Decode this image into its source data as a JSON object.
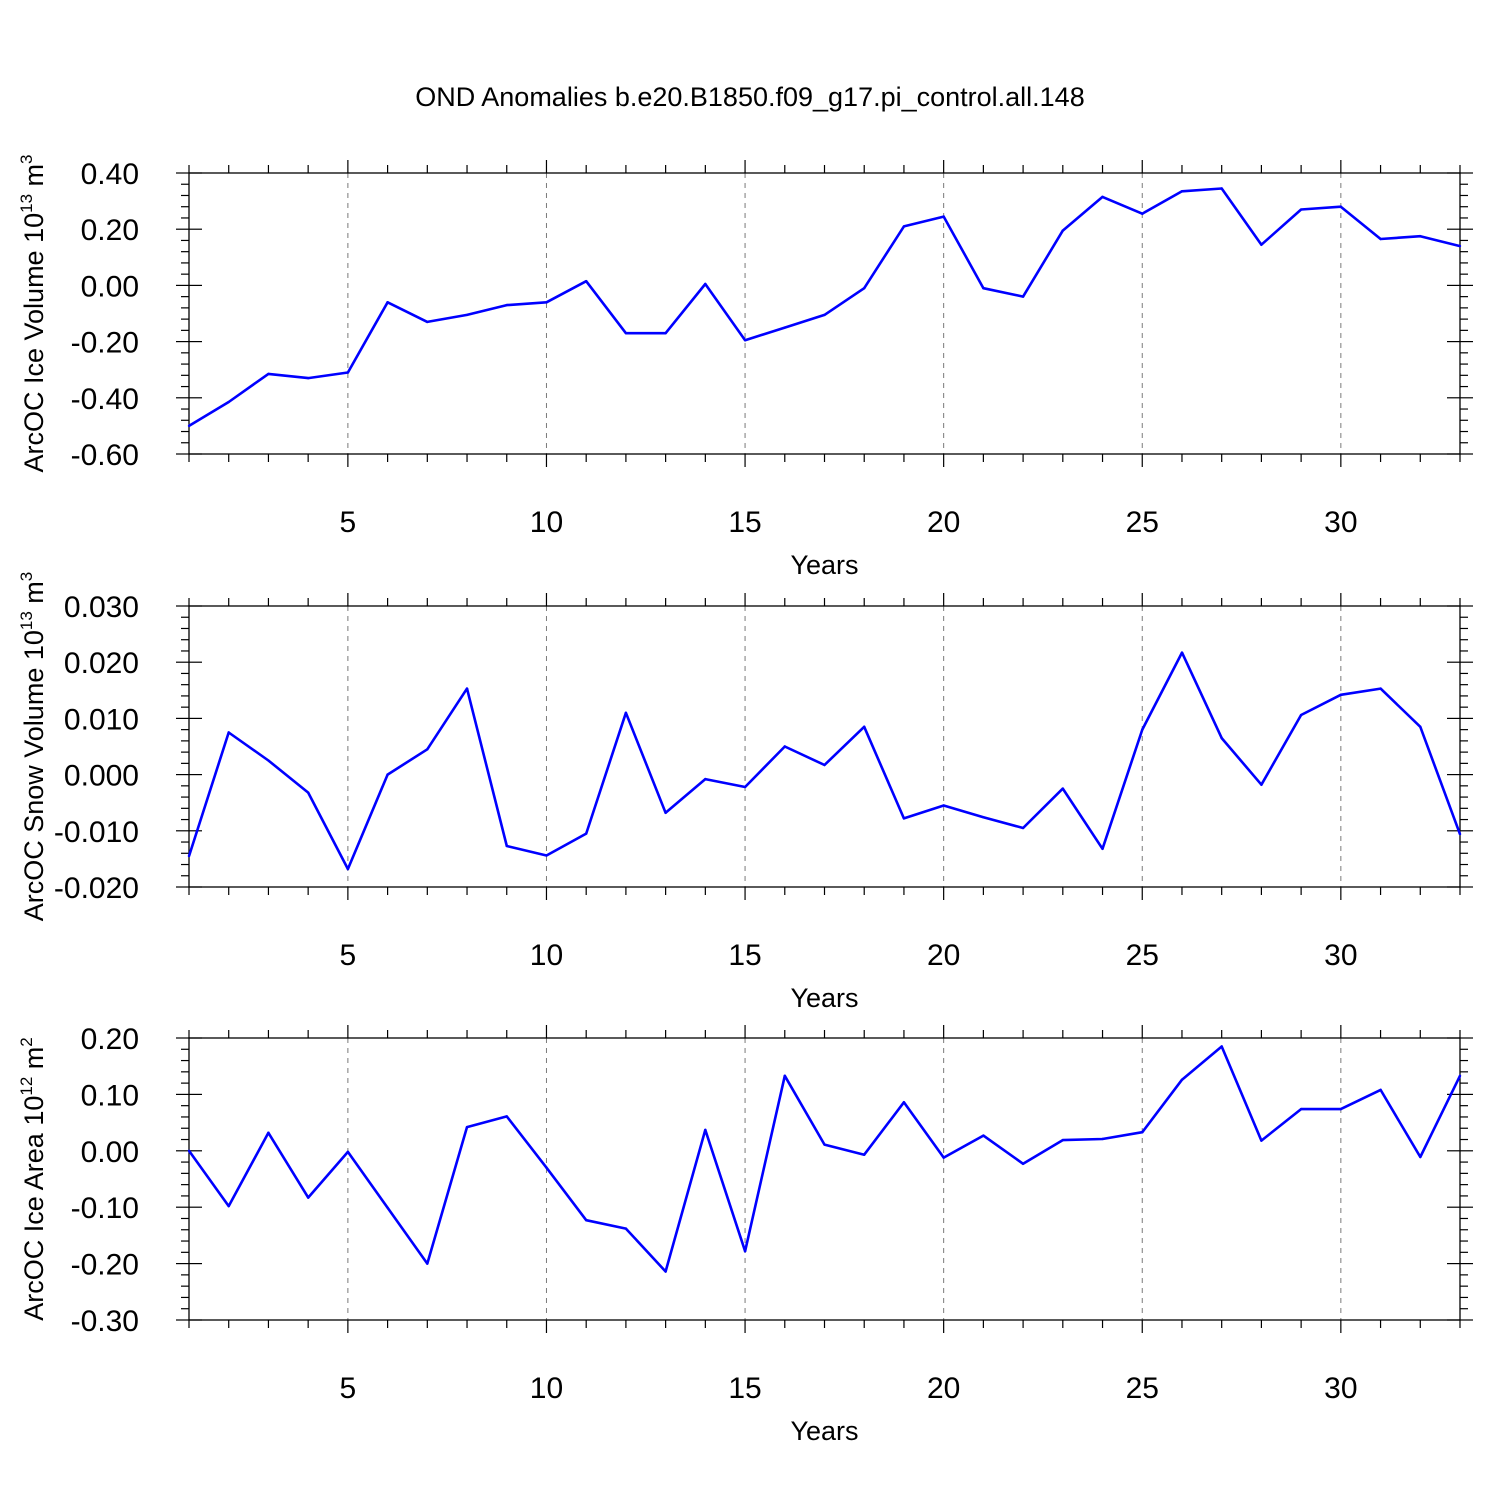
{
  "title": "OND Anomalies b.e20.B1850.f09_g17.pi_control.all.148",
  "line_color": "#0000ff",
  "chart_data": [
    {
      "type": "line",
      "name": "ice-volume",
      "ylabel": {
        "main": "ArcOC Ice Volume 10",
        "exp": "13",
        "unit": " m",
        "unit_exp": "3"
      },
      "xlabel": "Years",
      "xlim": [
        1,
        33
      ],
      "ylim": [
        -0.6,
        0.4
      ],
      "x_ticks": [
        5,
        10,
        15,
        20,
        25,
        30
      ],
      "x_tick_labels": [
        "5",
        "10",
        "15",
        "20",
        "25",
        "30"
      ],
      "y_ticks": [
        -0.6,
        -0.4,
        -0.2,
        0.0,
        0.2,
        0.4
      ],
      "y_tick_labels": [
        "-0.60",
        "-0.40",
        "-0.20",
        "0.00",
        "0.20",
        "0.40"
      ],
      "x": [
        1,
        2,
        3,
        4,
        5,
        6,
        7,
        8,
        9,
        10,
        11,
        12,
        13,
        14,
        15,
        16,
        17,
        18,
        19,
        20,
        21,
        22,
        23,
        24,
        25,
        26,
        27,
        28,
        29,
        30,
        31,
        32,
        33
      ],
      "values": [
        -0.5,
        -0.415,
        -0.315,
        -0.33,
        -0.31,
        -0.06,
        -0.13,
        -0.105,
        -0.07,
        -0.06,
        0.015,
        -0.17,
        -0.17,
        0.005,
        -0.195,
        -0.15,
        -0.105,
        -0.01,
        0.21,
        0.245,
        -0.01,
        -0.04,
        0.195,
        0.315,
        0.255,
        0.335,
        0.345,
        0.145,
        0.27,
        0.28,
        0.165,
        0.175,
        0.14
      ]
    },
    {
      "type": "line",
      "name": "snow-volume",
      "ylabel": {
        "main": "ArcOC Snow Volume 10",
        "exp": "13",
        "unit": " m",
        "unit_exp": "3"
      },
      "xlabel": "Years",
      "xlim": [
        1,
        33
      ],
      "ylim": [
        -0.02,
        0.03
      ],
      "x_ticks": [
        5,
        10,
        15,
        20,
        25,
        30
      ],
      "x_tick_labels": [
        "5",
        "10",
        "15",
        "20",
        "25",
        "30"
      ],
      "y_ticks": [
        -0.02,
        -0.01,
        0.0,
        0.01,
        0.02,
        0.03
      ],
      "y_tick_labels": [
        "-0.020",
        "-0.010",
        "0.000",
        "0.010",
        "0.020",
        "0.030"
      ],
      "x": [
        1,
        2,
        3,
        4,
        5,
        6,
        7,
        8,
        9,
        10,
        11,
        12,
        13,
        14,
        15,
        16,
        17,
        18,
        19,
        20,
        21,
        22,
        23,
        24,
        25,
        26,
        27,
        28,
        29,
        30,
        31,
        32,
        33
      ],
      "values": [
        -0.0145,
        0.0075,
        0.0025,
        -0.0032,
        -0.0168,
        0.0,
        0.0045,
        0.0153,
        -0.0127,
        -0.0144,
        -0.0105,
        0.011,
        -0.0068,
        -0.0008,
        -0.0022,
        0.005,
        0.0017,
        0.0085,
        -0.0078,
        -0.0055,
        -0.0076,
        -0.0095,
        -0.0025,
        -0.0132,
        0.008,
        0.0217,
        0.0065,
        -0.0018,
        0.0106,
        0.0142,
        0.0153,
        0.0085,
        -0.0106
      ]
    },
    {
      "type": "line",
      "name": "ice-area",
      "ylabel": {
        "main": "ArcOC Ice Area 10",
        "exp": "12",
        "unit": " m",
        "unit_exp": "2"
      },
      "xlabel": "Years",
      "xlim": [
        1,
        33
      ],
      "ylim": [
        -0.3,
        0.2
      ],
      "x_ticks": [
        5,
        10,
        15,
        20,
        25,
        30
      ],
      "x_tick_labels": [
        "5",
        "10",
        "15",
        "20",
        "25",
        "30"
      ],
      "y_ticks": [
        -0.3,
        -0.2,
        -0.1,
        0.0,
        0.1,
        0.2
      ],
      "y_tick_labels": [
        "-0.30",
        "-0.20",
        "-0.10",
        "0.00",
        "0.10",
        "0.20"
      ],
      "x": [
        1,
        2,
        3,
        4,
        5,
        6,
        7,
        8,
        9,
        10,
        11,
        12,
        13,
        14,
        15,
        16,
        17,
        18,
        19,
        20,
        21,
        22,
        23,
        24,
        25,
        26,
        27,
        28,
        29,
        30,
        31,
        32,
        33
      ],
      "values": [
        0.0,
        -0.098,
        0.032,
        -0.083,
        -0.002,
        -0.101,
        -0.2,
        0.042,
        0.061,
        -0.03,
        -0.123,
        -0.138,
        -0.214,
        0.037,
        -0.178,
        0.133,
        0.011,
        -0.007,
        0.086,
        -0.012,
        0.027,
        -0.023,
        0.019,
        0.021,
        0.033,
        0.126,
        0.185,
        0.018,
        0.074,
        0.074,
        0.108,
        -0.011,
        0.133
      ]
    }
  ]
}
